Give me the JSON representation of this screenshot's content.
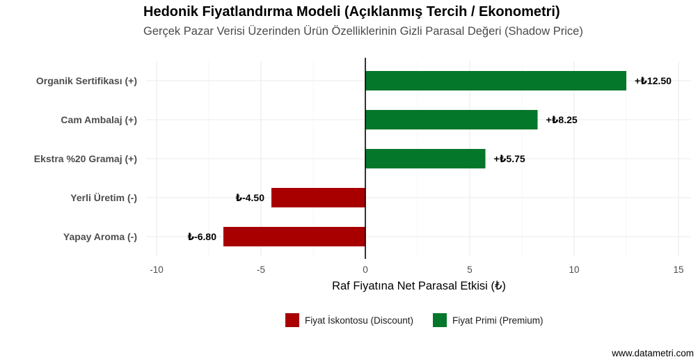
{
  "chart_data": {
    "type": "bar",
    "orientation": "horizontal",
    "title": "Hedonik Fiyatlandırma Modeli (Açıklanmış Tercih / Ekonometri)",
    "subtitle": "Gerçek Pazar Verisi Üzerinden Ürün Özelliklerinin Gizli Parasal Değeri (Shadow Price)",
    "categories": [
      "Organik Sertifikası (+)",
      "Cam Ambalaj (+)",
      "Ekstra %20 Gramaj (+)",
      "Yerli Üretim (-)",
      "Yapay Aroma (-)"
    ],
    "values": [
      12.5,
      8.25,
      5.75,
      -4.5,
      -6.8
    ],
    "value_labels": [
      "+₺12.50",
      "+₺8.25",
      "+₺5.75",
      "₺-4.50",
      "₺-6.80"
    ],
    "xlabel": "Raf Fiyatına Net Parasal Etkisi (₺)",
    "ylabel": "",
    "xlim": [
      -10.5,
      15.6
    ],
    "xticks": [
      -10,
      -5,
      0,
      5,
      10,
      15
    ],
    "xtick_labels": [
      "-10",
      "-5",
      "0",
      "5",
      "10",
      "15"
    ],
    "grid": true,
    "legend_position": "bottom",
    "legend": [
      {
        "name": "Fiyat İskontosu (Discount)",
        "color": "#a80000"
      },
      {
        "name": "Fiyat Primi (Premium)",
        "color": "#05772a"
      }
    ],
    "colors": {
      "positive": "#05772a",
      "negative": "#a80000"
    }
  },
  "footer": {
    "credit": "www.datametri.com"
  }
}
